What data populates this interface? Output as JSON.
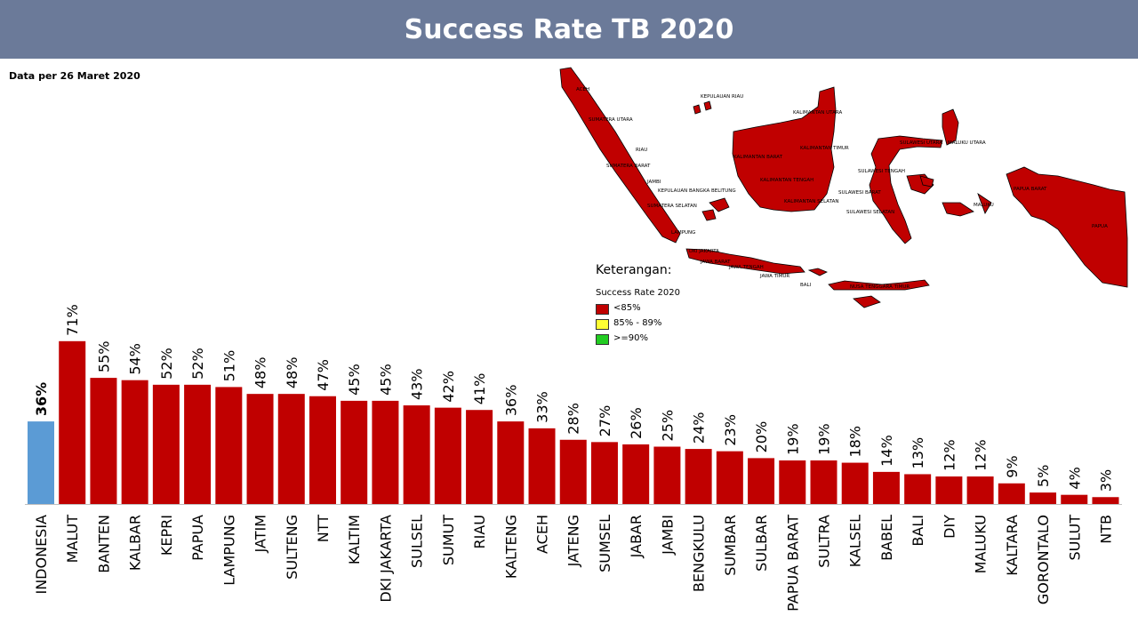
{
  "header": {
    "title": "Success Rate TB 2020"
  },
  "note": "Data per 26 Maret 2020",
  "legend": {
    "title": "Keterangan:",
    "subtitle": "Success Rate 2020",
    "items": [
      {
        "label": "<85%",
        "color": "#c00000"
      },
      {
        "label": "85% - 89%",
        "color": "#ffff33"
      },
      {
        "label": ">=90%",
        "color": "#22cc22"
      }
    ]
  },
  "map": {
    "region_color": "#c00000",
    "labels": [
      "ACEH",
      "SUMATERA UTARA",
      "RIAU",
      "SUMATERA BARAT",
      "JAMBI",
      "KEPULAUAN BANGKA BELITUNG",
      "SUMATERA SELATAN",
      "LAMPUNG",
      "DKI JAKARTA",
      "JAWA BARAT",
      "JAWA TENGAH",
      "JAWA TIMUR",
      "BALI",
      "NUSA TENGGARA TIMUR",
      "KEPULAUAN RIAU",
      "KALIMANTAN UTARA",
      "KALIMANTAN TIMUR",
      "KALIMANTAN BARAT",
      "KALIMANTAN TENGAH",
      "KALIMANTAN SELATAN",
      "SULAWESI UTARA",
      "MALUKU UTARA",
      "SULAWESI TENGAH",
      "SULAWESI BARAT",
      "SULAWESI SELATAN",
      "MALUKU",
      "PAPUA BARAT",
      "PAPUA"
    ]
  },
  "chart_data": {
    "type": "bar",
    "categories": [
      "INDONESIA",
      "MALUT",
      "BANTEN",
      "KALBAR",
      "KEPRI",
      "PAPUA",
      "LAMPUNG",
      "JATIM",
      "SULTENG",
      "NTT",
      "KALTIM",
      "DKI JAKARTA",
      "SULSEL",
      "SUMUT",
      "RIAU",
      "KALTENG",
      "ACEH",
      "JATENG",
      "SUMSEL",
      "JABAR",
      "JAMBI",
      "BENGKULU",
      "SUMBAR",
      "SULBAR",
      "PAPUA BARAT",
      "SULTRA",
      "KALSEL",
      "BABEL",
      "BALI",
      "DIY",
      "MALUKU",
      "KALTARA",
      "GORONTALO",
      "SULUT",
      "NTB"
    ],
    "values": [
      36,
      71,
      55,
      54,
      52,
      52,
      51,
      48,
      48,
      47,
      45,
      45,
      43,
      42,
      41,
      36,
      33,
      28,
      27,
      26,
      25,
      24,
      23,
      20,
      19,
      19,
      18,
      14,
      13,
      12,
      12,
      9,
      5,
      4,
      3
    ],
    "data_labels": [
      "36%",
      "71%",
      "55%",
      "54%",
      "52%",
      "52%",
      "51%",
      "48%",
      "48%",
      "47%",
      "45%",
      "45%",
      "43%",
      "42%",
      "41%",
      "36%",
      "33%",
      "28%",
      "27%",
      "26%",
      "25%",
      "24%",
      "23%",
      "20%",
      "19%",
      "19%",
      "18%",
      "14%",
      "13%",
      "12%",
      "12%",
      "9%",
      "5%",
      "4%",
      "3%"
    ],
    "highlight_color": "#5b9bd5",
    "bar_color": "#c00000",
    "ylim": [
      0,
      75
    ]
  }
}
